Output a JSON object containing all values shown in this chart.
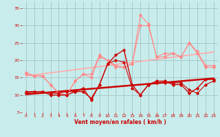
{
  "x": [
    0,
    1,
    2,
    3,
    4,
    5,
    6,
    7,
    8,
    9,
    10,
    11,
    12,
    13,
    14,
    15,
    16,
    17,
    18,
    19,
    20,
    21,
    22,
    23
  ],
  "line_avg": [
    10.5,
    11,
    11,
    10,
    10,
    10,
    11,
    11,
    9,
    13,
    19,
    21.5,
    23,
    13,
    10,
    13,
    14,
    14,
    13,
    13,
    10.5,
    12,
    14.5,
    14.5
  ],
  "line_gust": [
    16.5,
    15.5,
    15.5,
    13,
    10.5,
    10,
    14,
    16,
    16,
    21.5,
    20,
    18.5,
    18,
    19,
    33,
    30.5,
    21,
    22,
    22,
    21,
    25,
    22.5,
    18.5,
    18.5
  ],
  "line_avg2": [
    11,
    11,
    11,
    10.5,
    10.5,
    11,
    11,
    12,
    8.5,
    13,
    19,
    20,
    19.5,
    12,
    10,
    13,
    13.5,
    13.5,
    13.5,
    13.5,
    11.5,
    10.5,
    13,
    14
  ],
  "line_gust2": [
    16,
    15.5,
    15.5,
    13,
    10.5,
    10,
    14,
    16,
    15,
    21,
    20,
    18,
    18,
    19,
    30,
    30,
    21,
    21,
    22,
    21,
    25,
    22,
    18,
    18
  ],
  "trend_avg": [
    10.2,
    10.4,
    10.6,
    10.8,
    11.0,
    11.2,
    11.4,
    11.6,
    11.8,
    12.0,
    12.2,
    12.4,
    12.6,
    12.8,
    13.0,
    13.2,
    13.4,
    13.6,
    13.8,
    14.0,
    14.2,
    14.4,
    14.6,
    14.8
  ],
  "trend_gust": [
    15.5,
    15.8,
    16.1,
    16.4,
    16.7,
    17.0,
    17.3,
    17.6,
    17.9,
    18.2,
    18.5,
    18.8,
    19.1,
    19.4,
    19.7,
    20.0,
    20.3,
    20.6,
    20.9,
    21.2,
    21.5,
    21.8,
    22.1,
    22.4
  ],
  "xlabel": "Vent moyen/en rafales ( km/h )",
  "ylim": [
    5,
    37
  ],
  "xlim": [
    -0.5,
    23.5
  ],
  "yticks": [
    5,
    10,
    15,
    20,
    25,
    30,
    35
  ],
  "xticks": [
    0,
    1,
    2,
    3,
    4,
    5,
    6,
    7,
    8,
    9,
    10,
    11,
    12,
    13,
    14,
    15,
    16,
    17,
    18,
    19,
    20,
    21,
    22,
    23
  ],
  "bg_color": "#c8ecec",
  "grid_color": "#9bbcbc",
  "color_dark_red": "#cc0000",
  "color_light_red": "#ff8888",
  "color_trend_gust": "#ffaaaa",
  "arrow_color": "#cc2222"
}
